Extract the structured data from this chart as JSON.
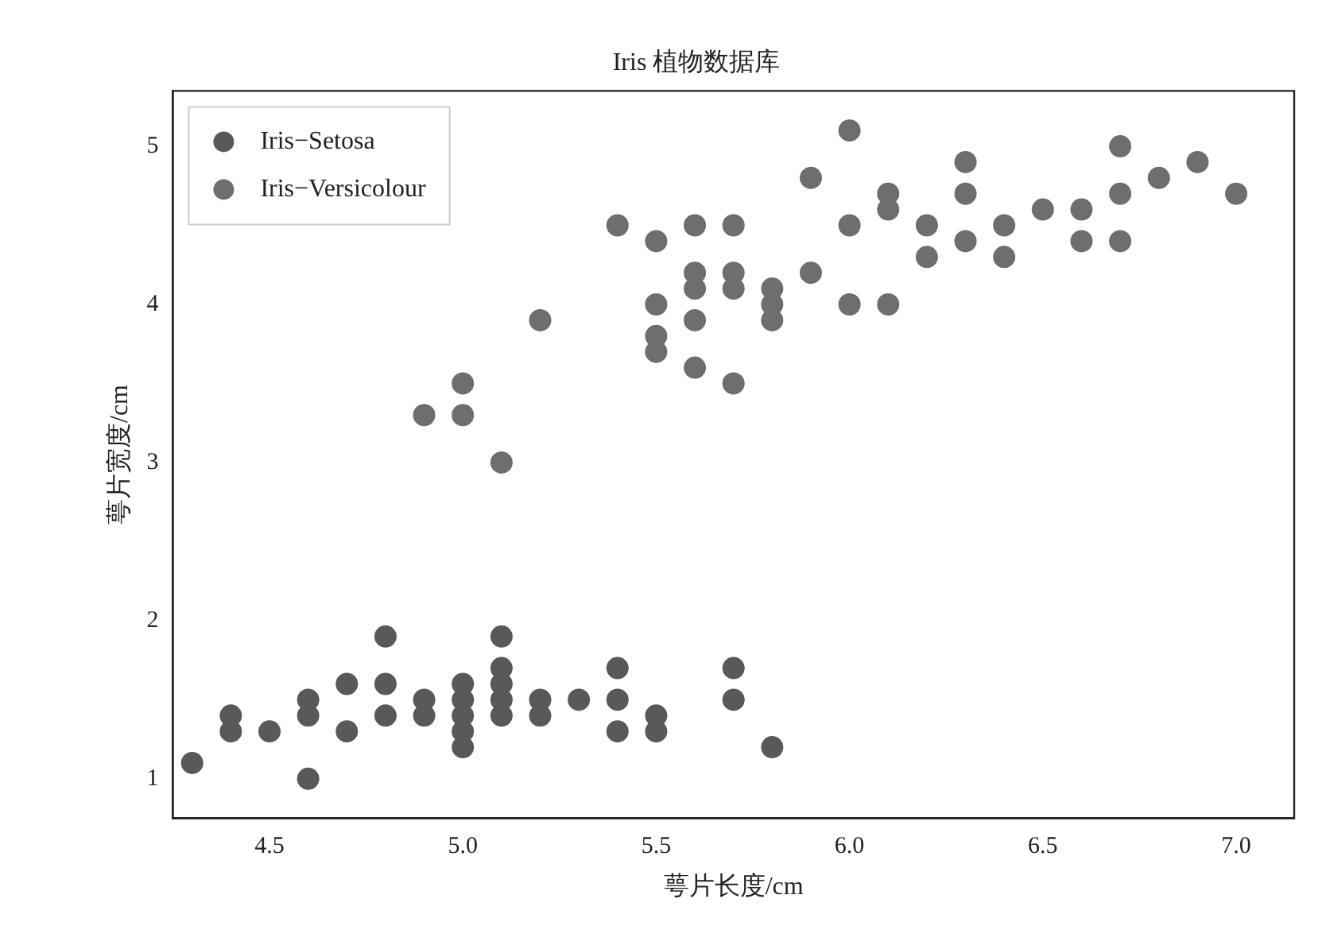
{
  "chart_data": {
    "type": "scatter",
    "title": "Iris 植物数据库",
    "xlabel": "萼片长度/cm",
    "ylabel": "萼片宽度/cm",
    "legend": "top left",
    "marker": "circle",
    "xlim": [
      4.25,
      7.15
    ],
    "ylim": [
      0.75,
      5.35
    ],
    "xticks": [
      {
        "value": 4.5,
        "label": "4.5"
      },
      {
        "value": 5,
        "label": "5.0"
      },
      {
        "value": 5.5,
        "label": "5.5"
      },
      {
        "value": 6,
        "label": "6.0"
      },
      {
        "value": 6.5,
        "label": "6.5"
      },
      {
        "value": 7,
        "label": "7.0"
      }
    ],
    "yticks": [
      1,
      2,
      3,
      4,
      5
    ],
    "series": [
      {
        "name": "Iris−Setosa",
        "color": "#595959",
        "x": [
          5.1,
          5.1,
          5.1,
          5.1,
          5.1,
          4.9,
          4.9,
          4.7,
          4.7,
          4.6,
          4.6,
          4.6,
          5.0,
          5.0,
          5.0,
          5.0,
          5.0,
          5.4,
          5.4,
          5.4,
          4.4,
          4.4,
          4.8,
          4.8,
          4.8,
          4.3,
          5.8,
          5.7,
          5.7,
          5.2,
          5.2,
          5.5,
          5.5,
          4.5,
          5.3
        ],
        "values": [
          1.4,
          1.5,
          1.7,
          1.9,
          1.6,
          1.4,
          1.5,
          1.3,
          1.6,
          1.5,
          1.4,
          1.0,
          1.4,
          1.5,
          1.2,
          1.3,
          1.6,
          1.7,
          1.5,
          1.3,
          1.4,
          1.3,
          1.6,
          1.4,
          1.9,
          1.1,
          1.2,
          1.5,
          1.7,
          1.5,
          1.4,
          1.4,
          1.3,
          1.3,
          1.5
        ]
      },
      {
        "name": "Iris−Versicolour",
        "color": "#6e6e6e",
        "x": [
          7.0,
          6.4,
          6.4,
          6.9,
          5.5,
          5.5,
          5.5,
          5.5,
          6.5,
          5.7,
          5.7,
          5.7,
          5.7,
          6.3,
          6.3,
          6.3,
          4.9,
          6.6,
          6.6,
          5.2,
          5.0,
          5.0,
          5.9,
          5.9,
          6.0,
          6.0,
          6.0,
          6.1,
          6.1,
          6.1,
          5.6,
          5.6,
          5.6,
          5.6,
          5.6,
          6.7,
          6.7,
          6.7,
          5.8,
          5.8,
          5.8,
          6.2,
          6.2,
          6.8,
          5.4,
          5.1
        ],
        "values": [
          4.7,
          4.5,
          4.3,
          4.9,
          4.0,
          3.8,
          3.7,
          4.4,
          4.6,
          4.5,
          3.5,
          4.2,
          4.1,
          4.7,
          4.9,
          4.4,
          3.3,
          4.6,
          4.4,
          3.9,
          3.5,
          3.3,
          4.2,
          4.8,
          4.0,
          4.5,
          5.1,
          4.7,
          4.0,
          4.6,
          3.6,
          4.5,
          3.9,
          4.1,
          4.2,
          4.4,
          5.0,
          4.7,
          4.1,
          3.9,
          4.0,
          4.5,
          4.3,
          4.8,
          4.5,
          3.0
        ]
      }
    ]
  }
}
